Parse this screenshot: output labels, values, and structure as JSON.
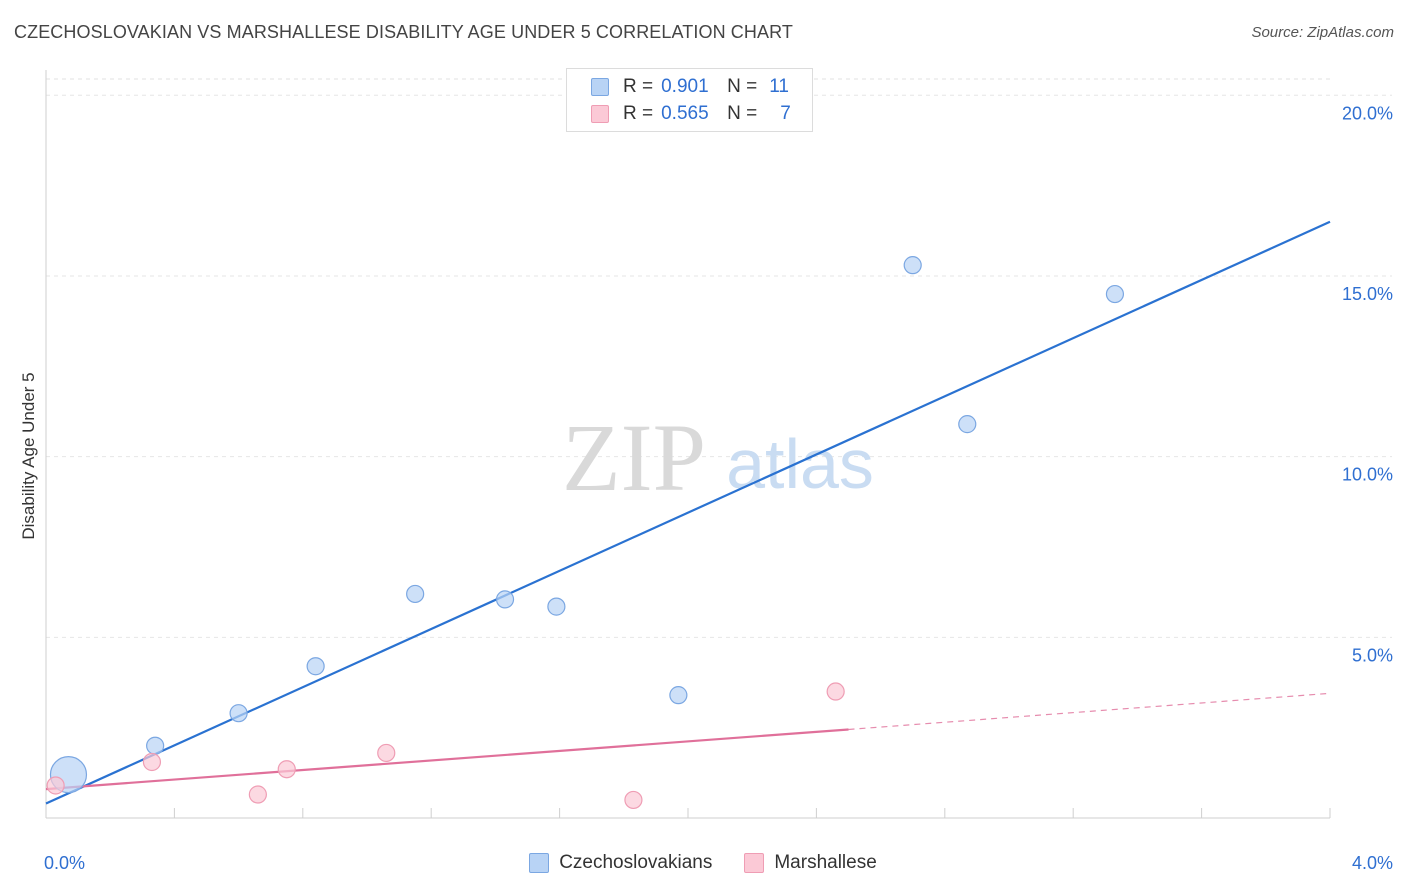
{
  "header": {
    "title": "CZECHOSLOVAKIAN VS MARSHALLESE DISABILITY AGE UNDER 5 CORRELATION CHART",
    "source": "Source: ZipAtlas.com"
  },
  "watermark": {
    "zip": "ZIP",
    "atlas": "atlas"
  },
  "legend": {
    "rows": [
      {
        "r_label": "R =",
        "r_value": "0.901",
        "n_label": "N =",
        "n_value": "11",
        "fill": "#b8d3f5",
        "stroke": "#7ba7e2"
      },
      {
        "r_label": "R =",
        "r_value": "0.565",
        "n_label": "N =",
        "n_value": "7",
        "fill": "#fbc9d6",
        "stroke": "#ef9db4"
      }
    ]
  },
  "bottom_legend": [
    {
      "label": "Czechoslovakians",
      "fill": "#b8d3f5",
      "stroke": "#7ba7e2"
    },
    {
      "label": "Marshallese",
      "fill": "#fbc9d6",
      "stroke": "#ef9db4"
    }
  ],
  "chart_data": {
    "type": "scatter",
    "title": "CZECHOSLOVAKIAN VS MARSHALLESE DISABILITY AGE UNDER 5 CORRELATION CHART",
    "xlabel": "",
    "ylabel": "Disability Age Under 5",
    "xlim": [
      0,
      4.0
    ],
    "ylim": [
      0,
      20.7
    ],
    "x_tick_labels": [
      "0.0%",
      "4.0%"
    ],
    "y_ticks": [
      5.0,
      10.0,
      15.0,
      20.0
    ],
    "y_tick_labels": [
      "5.0%",
      "10.0%",
      "15.0%",
      "20.0%"
    ],
    "grid": true,
    "series": [
      {
        "name": "Czechoslovakians",
        "color": "#7ba7e2",
        "fill": "#b8d3f5",
        "line_color": "#2a72d1",
        "points": [
          {
            "x": 0.07,
            "y": 1.2,
            "size": "large"
          },
          {
            "x": 0.34,
            "y": 2.0
          },
          {
            "x": 0.6,
            "y": 2.9
          },
          {
            "x": 0.84,
            "y": 4.2
          },
          {
            "x": 1.15,
            "y": 6.2
          },
          {
            "x": 1.43,
            "y": 6.05
          },
          {
            "x": 1.59,
            "y": 5.85
          },
          {
            "x": 1.97,
            "y": 3.4
          },
          {
            "x": 2.7,
            "y": 15.3
          },
          {
            "x": 2.87,
            "y": 10.9
          },
          {
            "x": 3.33,
            "y": 14.5
          }
        ],
        "trend": {
          "x1": 0.0,
          "y1": 0.4,
          "x2": 4.0,
          "y2": 16.5
        }
      },
      {
        "name": "Marshallese",
        "color": "#ef9db4",
        "fill": "#fbc9d6",
        "line_color": "#e0709a",
        "points": [
          {
            "x": 0.03,
            "y": 0.9
          },
          {
            "x": 0.33,
            "y": 1.55
          },
          {
            "x": 0.66,
            "y": 0.65
          },
          {
            "x": 0.75,
            "y": 1.35
          },
          {
            "x": 1.06,
            "y": 1.8
          },
          {
            "x": 1.83,
            "y": 0.5
          },
          {
            "x": 2.46,
            "y": 3.5
          }
        ],
        "trend": {
          "x1": 0.0,
          "y1": 0.8,
          "x2": 2.5,
          "y2": 2.45,
          "x3": 4.0,
          "y3": 3.45
        }
      }
    ]
  }
}
